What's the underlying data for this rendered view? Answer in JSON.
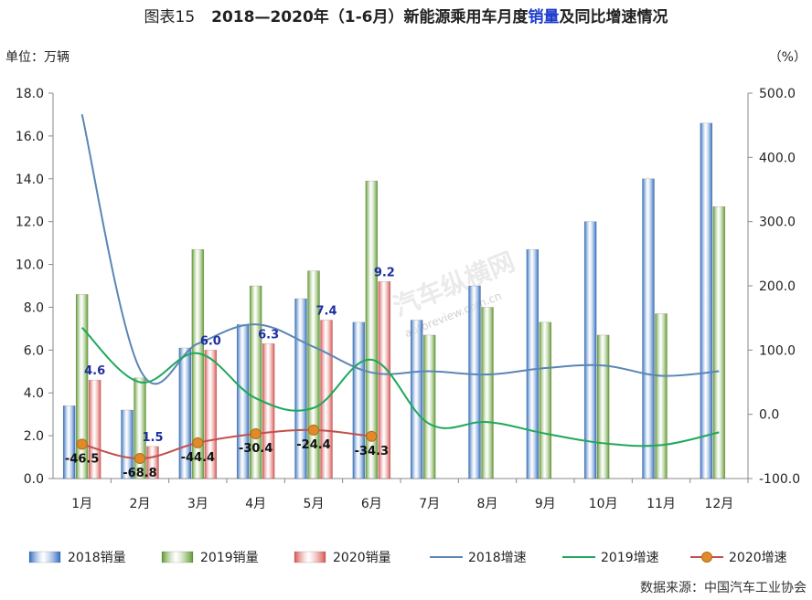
{
  "header": {
    "fig_no": "图表15",
    "title_pre": "2018—2020年（1-6月）新能源乘用车月度",
    "title_hl": "销量",
    "title_post": "及同比增速情况",
    "unit_left": "单位：万辆",
    "unit_right": "（%）",
    "source": "数据来源：中国汽车工业协会",
    "watermark": "汽车纵横网",
    "watermark_url": "autoreview.com.cn"
  },
  "colors": {
    "bar2018": "#2e6cc0",
    "bar2019": "#5e9a2c",
    "bar2020": "#d9534f",
    "line2018": "#5b86b5",
    "line2019": "#1fa85a",
    "line2020": "#c0504d",
    "marker2020": "#e08a2a",
    "label2020": "#1f2fa0"
  },
  "chart_data": {
    "type": "bar",
    "categories": [
      "1月",
      "2月",
      "3月",
      "4月",
      "5月",
      "6月",
      "7月",
      "8月",
      "9月",
      "10月",
      "11月",
      "12月"
    ],
    "y_left": {
      "ticks": [
        "0.0",
        "2.0",
        "4.0",
        "6.0",
        "8.0",
        "10.0",
        "12.0",
        "14.0",
        "16.0",
        "18.0"
      ],
      "min": 0,
      "max": 18
    },
    "y_right": {
      "ticks": [
        "-100.0",
        "0.0",
        "100.0",
        "200.0",
        "300.0",
        "400.0",
        "500.0"
      ],
      "min": -100,
      "max": 500
    },
    "series": [
      {
        "name": "2018销量",
        "kind": "bar",
        "axis": "left",
        "values": [
          3.4,
          3.2,
          6.1,
          7.2,
          8.4,
          7.3,
          7.4,
          9.0,
          10.7,
          12.0,
          14.0,
          16.6
        ]
      },
      {
        "name": "2019销量",
        "kind": "bar",
        "axis": "left",
        "values": [
          8.6,
          4.7,
          10.7,
          9.0,
          9.7,
          13.9,
          6.7,
          8.0,
          7.3,
          6.7,
          7.7,
          12.7
        ]
      },
      {
        "name": "2020销量",
        "kind": "bar",
        "axis": "left",
        "values": [
          4.6,
          1.5,
          6.0,
          6.3,
          7.4,
          9.2,
          null,
          null,
          null,
          null,
          null,
          null
        ],
        "labels": [
          "4.6",
          "1.5",
          "6.0",
          "6.3",
          "7.4",
          "9.2"
        ]
      },
      {
        "name": "2018增速",
        "kind": "line",
        "axis": "right",
        "values": [
          467,
          70,
          110,
          140,
          105,
          65,
          67,
          62,
          72,
          76,
          60,
          67
        ]
      },
      {
        "name": "2019增速",
        "kind": "line",
        "axis": "right",
        "values": [
          135,
          50,
          95,
          25,
          10,
          85,
          -15,
          -12,
          -30,
          -45,
          -48,
          -28
        ]
      },
      {
        "name": "2020增速",
        "kind": "line",
        "axis": "right",
        "values": [
          -46.5,
          -68.8,
          -44.4,
          -30.4,
          -24.4,
          -34.3,
          null,
          null,
          null,
          null,
          null,
          null
        ],
        "labels": [
          "-46.5",
          "-68.8",
          "-44.4",
          "-30.4",
          "-24.4",
          "-34.3"
        ]
      }
    ]
  }
}
